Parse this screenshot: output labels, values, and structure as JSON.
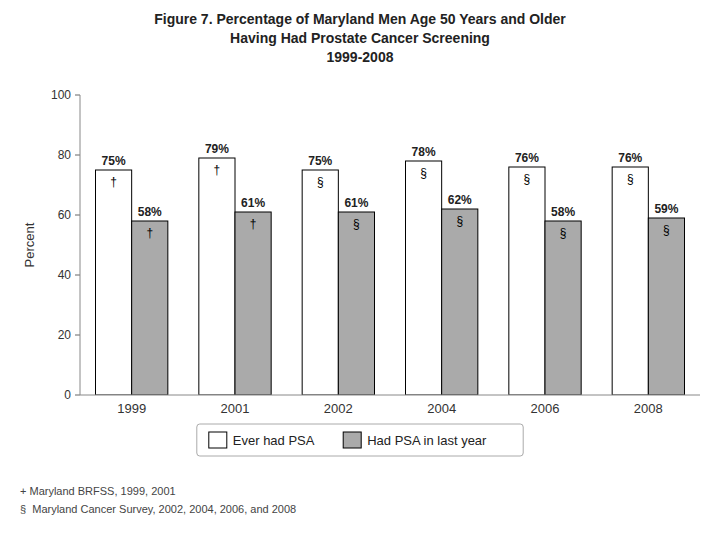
{
  "chart_data": {
    "type": "bar",
    "title": [
      "Figure 7. Percentage of Maryland Men Age 50 Years and Older",
      "Having Had Prostate Cancer Screening",
      "1999-2008"
    ],
    "categories": [
      "1999",
      "2001",
      "2002",
      "2004",
      "2006",
      "2008"
    ],
    "series": [
      {
        "name": "Ever had PSA",
        "color": "#FFFFFF",
        "values": [
          75,
          79,
          75,
          78,
          76,
          76
        ],
        "value_labels": [
          "75%",
          "79%",
          "75%",
          "78%",
          "76%",
          "76%"
        ],
        "annotations": [
          "†",
          "†",
          "§",
          "§",
          "§",
          "§"
        ]
      },
      {
        "name": "Had PSA in last year",
        "color": "#AAAAAA",
        "values": [
          58,
          61,
          61,
          62,
          58,
          59
        ],
        "value_labels": [
          "58%",
          "61%",
          "61%",
          "62%",
          "58%",
          "59%"
        ],
        "annotations": [
          "†",
          "†",
          "§",
          "§",
          "§",
          "§"
        ]
      }
    ],
    "ylabel": "Percent",
    "ylim": [
      0,
      100
    ],
    "yticks": [
      0,
      20,
      40,
      60,
      80,
      100
    ],
    "grid": false,
    "legend": "bottom",
    "data_labels": true,
    "annotations": [
      "+ Maryland BRFSS, 1999, 2001",
      "§  Maryland Cancer Survey, 2002, 2004, 2006, and 2008"
    ]
  }
}
